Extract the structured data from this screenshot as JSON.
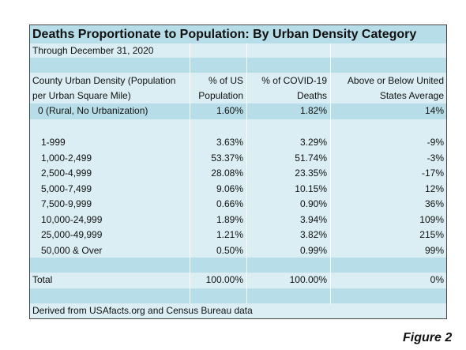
{
  "header": {
    "title": "Deaths Proportionate to Population: By Urban Density Category",
    "subtitle": "Through December 31, 2020"
  },
  "table": {
    "columns": [
      [
        "County Urban Density (Population",
        "per Urban Square Mile)"
      ],
      [
        "% of US",
        "Population"
      ],
      [
        "% of COVID-19",
        "Deaths"
      ],
      [
        "Above or Below United",
        "States Average"
      ]
    ],
    "rows": [
      [
        "0 (Rural, No Urbanization)",
        "1.60%",
        "1.82%",
        "14%"
      ],
      [
        "1-999",
        "3.63%",
        "3.29%",
        "-9%"
      ],
      [
        "1,000-2,499",
        "53.37%",
        "51.74%",
        "-3%"
      ],
      [
        "2,500-4,999",
        "28.08%",
        "23.35%",
        "-17%"
      ],
      [
        "5,000-7,499",
        "9.06%",
        "10.15%",
        "12%"
      ],
      [
        "7,500-9,999",
        "0.66%",
        "0.90%",
        "36%"
      ],
      [
        "10,000-24,999",
        "1.89%",
        "3.94%",
        "109%"
      ],
      [
        "25,000-49,999",
        "1.21%",
        "3.82%",
        "215%"
      ],
      [
        "50,000 & Over",
        "0.50%",
        "0.99%",
        "99%"
      ],
      [
        "Total",
        "100.00%",
        "100.00%",
        "0%"
      ]
    ]
  },
  "footer": {
    "note": "Derived from USAfacts.org and Census Bureau data",
    "figure": "Figure 2"
  }
}
